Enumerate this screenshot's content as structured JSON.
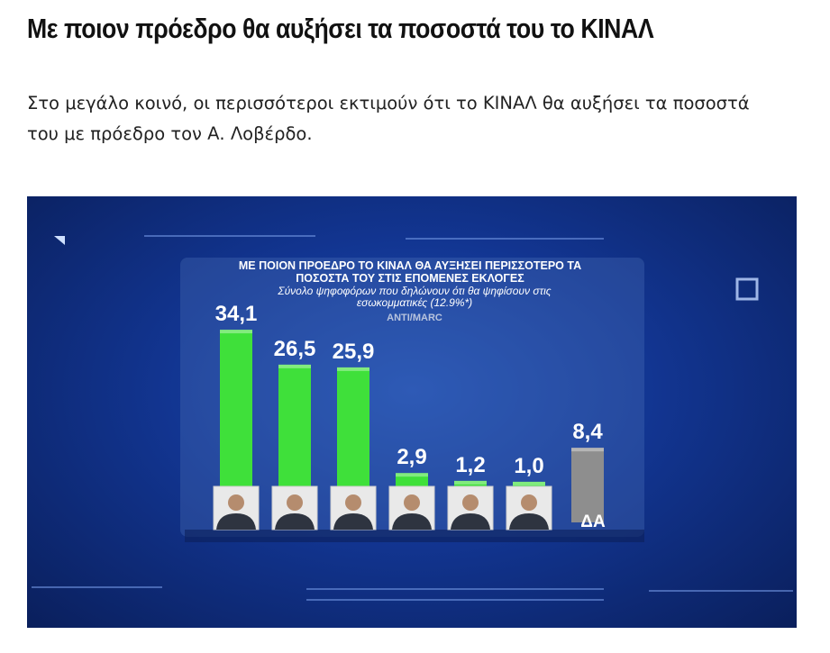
{
  "header": {
    "title": "Με ποιον πρόεδρο θα αυξήσει τα ποσοστά του το ΚΙΝΑΛ"
  },
  "text": {
    "paragraph": "Στο μεγάλο κοινό, οι περισσότεροι εκτιμούν ότι το ΚΙΝΑΛ θα αυξήσει τα ποσοστά του με πρόεδρο τον Α. Λοβέρδο."
  },
  "chart_data": {
    "type": "bar",
    "title": "ΜΕ ΠΟΙΟΝ ΠΡΟΕΔΡΟ ΤΟ ΚΙΝΑΛ ΘΑ ΑΥΞΗΣΕΙ ΠΕΡΙΣΣΟΤΕΡΟ ΤΑ ΠΟΣΟΣΤΑ ΤΟΥ ΣΤΙΣ ΕΠΟΜΕΝΕΣ ΕΚΛΟΓΕΣ",
    "subtitle": "Σύνολο ψηφοφόρων που δηλώνουν ότι θα ψηφίσουν στις εσωκομματικές (12.9%*)",
    "source": "ANTI/MARC",
    "categories": [
      null,
      null,
      null,
      null,
      null,
      null,
      "ΔΑ"
    ],
    "values": [
      34.1,
      26.5,
      25.9,
      2.9,
      1.2,
      1.0,
      8.4
    ],
    "value_labels": [
      "34,1",
      "26,5",
      "25,9",
      "2,9",
      "1,2",
      "1,0",
      "8,4"
    ],
    "colors": [
      "#3fe03a",
      "#3fe03a",
      "#3fe03a",
      "#3fe03a",
      "#3fe03a",
      "#3fe03a",
      "#8e8e8e"
    ]
  }
}
